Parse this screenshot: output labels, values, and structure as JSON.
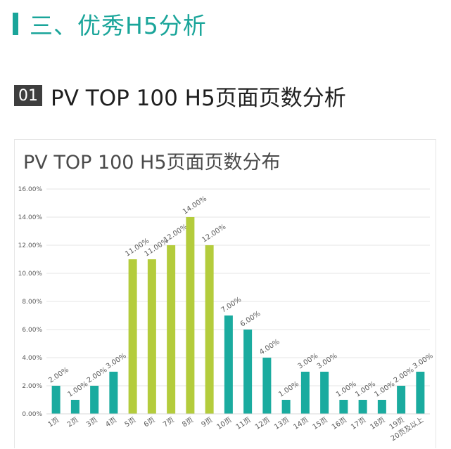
{
  "section": {
    "title": "三、优秀H5分析"
  },
  "subsection": {
    "number": "01",
    "title": "PV TOP 100 H5页面页数分析"
  },
  "colors": {
    "accent": "#1aa59a",
    "teal_bar": "#1aab9f",
    "lime_bar": "#b4cc3c"
  },
  "chart_data": {
    "type": "bar",
    "title": "PV TOP 100 H5页面页数分布",
    "xlabel": "",
    "ylabel": "",
    "categories": [
      "1页",
      "2页",
      "3页",
      "4页",
      "5页",
      "6页",
      "7页",
      "8页",
      "9页",
      "10页",
      "11页",
      "12页",
      "13页",
      "14页",
      "15页",
      "16页",
      "17页",
      "18页",
      "19页",
      "20页及以上"
    ],
    "values": [
      2,
      1,
      2,
      3,
      11,
      11,
      12,
      14,
      12,
      7,
      6,
      4,
      1,
      3,
      3,
      1,
      1,
      1,
      2,
      3
    ],
    "data_labels": [
      "2.00%",
      "1.00%",
      "2.00%",
      "3.00%",
      "11.00%",
      "11.00%",
      "12.00%",
      "14.00%",
      "12.00%",
      "7.00%",
      "6.00%",
      "4.00%",
      "1.00%",
      "3.00%",
      "3.00%",
      "1.00%",
      "1.00%",
      "1.00%",
      "2.00%",
      "3.00%"
    ],
    "highlight_categories": [
      "5页",
      "6页",
      "7页",
      "8页",
      "9页"
    ],
    "ylim": [
      0,
      16
    ],
    "yticks": [
      "0.00%",
      "2.00%",
      "4.00%",
      "6.00%",
      "8.00%",
      "10.00%",
      "12.00%",
      "14.00%",
      "16.00%"
    ],
    "grid": true
  }
}
